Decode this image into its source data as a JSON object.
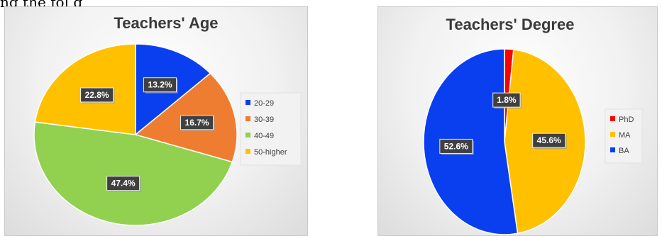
{
  "caption": "ng the fol      g",
  "chart_data": [
    {
      "type": "pie",
      "title": "Teachers' Age",
      "legend_position": "right",
      "categories": [
        "20-29",
        "30-39",
        "40-49",
        "50-higher"
      ],
      "values": [
        13.2,
        16.7,
        47.4,
        22.8
      ],
      "value_labels": [
        "13.2%",
        "16.7%",
        "47.4%",
        "22.8%"
      ],
      "colors": [
        "#0a3ff0",
        "#ef7d31",
        "#92d050",
        "#ffc000"
      ],
      "start_angle_deg": 0,
      "direction": "clockwise"
    },
    {
      "type": "pie",
      "title": "Teachers' Degree",
      "legend_position": "right",
      "categories": [
        "PhD",
        "MA",
        "BA"
      ],
      "values": [
        1.8,
        45.6,
        52.6
      ],
      "value_labels": [
        "1.8%",
        "45.6%",
        "52.6%"
      ],
      "colors": [
        "#ff0000",
        "#ffc000",
        "#0a3ff0"
      ],
      "start_angle_deg": 0,
      "direction": "clockwise"
    }
  ]
}
